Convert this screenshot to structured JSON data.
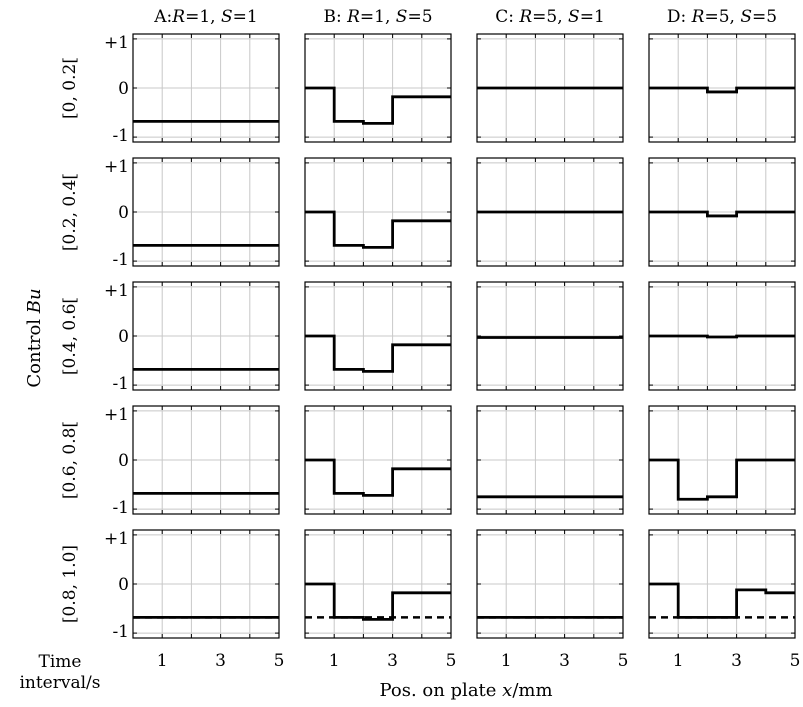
{
  "figure": {
    "ylabel_text": "Control",
    "ylabel_var": "Bu",
    "xlabel_text": "Pos. on plate",
    "xlabel_var": "x",
    "xlabel_unit": "/mm",
    "time_label_1": "Time",
    "time_label_2": "interval/s"
  },
  "columns": [
    {
      "parts": [
        {
          "t": "A:",
          "i": false
        },
        {
          "t": "R",
          "i": true
        },
        {
          "t": "=1, ",
          "i": false
        },
        {
          "t": "S",
          "i": true
        },
        {
          "t": "=1",
          "i": false
        }
      ]
    },
    {
      "parts": [
        {
          "t": "B: ",
          "i": false
        },
        {
          "t": "R",
          "i": true
        },
        {
          "t": "=1, ",
          "i": false
        },
        {
          "t": "S",
          "i": true
        },
        {
          "t": "=5",
          "i": false
        }
      ]
    },
    {
      "parts": [
        {
          "t": "C: ",
          "i": false
        },
        {
          "t": "R",
          "i": true
        },
        {
          "t": "=5, ",
          "i": false
        },
        {
          "t": "S",
          "i": true
        },
        {
          "t": "=1",
          "i": false
        }
      ]
    },
    {
      "parts": [
        {
          "t": "D: ",
          "i": false
        },
        {
          "t": "R",
          "i": true
        },
        {
          "t": "=5, ",
          "i": false
        },
        {
          "t": "S",
          "i": true
        },
        {
          "t": "=5",
          "i": false
        }
      ]
    }
  ],
  "rows": [
    "[0, 0.2[",
    "[0.2, 0.4[",
    "[0.4, 0.6[",
    "[0.6, 0.8[",
    "[0.8, 1.0]"
  ],
  "chart_data": {
    "type": "line",
    "layout": "small multiples 5 rows x 4 columns",
    "xlim": [
      0,
      5
    ],
    "ylim": [
      -1.1,
      1.1
    ],
    "x_ticks": [
      1,
      3,
      5
    ],
    "x_tick_labels": [
      "1",
      "3",
      "5"
    ],
    "y_ticks": [
      -1,
      0,
      1
    ],
    "y_tick_labels": [
      "-1",
      "0",
      "+1"
    ],
    "grid": true,
    "segment_edges": [
      0,
      1,
      2,
      3,
      4,
      5
    ],
    "dashed_reference_value": -0.68,
    "dashed_reference_rows": [
      4
    ],
    "panels": [
      [
        {
          "values": [
            -0.68,
            -0.68,
            -0.68,
            -0.68,
            -0.68
          ]
        },
        {
          "values": [
            0,
            -0.68,
            -0.72,
            -0.18,
            -0.18
          ]
        },
        {
          "values": [
            0,
            0,
            0,
            0,
            0
          ]
        },
        {
          "values": [
            0,
            0,
            -0.08,
            0,
            0
          ]
        }
      ],
      [
        {
          "values": [
            -0.68,
            -0.68,
            -0.68,
            -0.68,
            -0.68
          ]
        },
        {
          "values": [
            0,
            -0.68,
            -0.72,
            -0.18,
            -0.18
          ]
        },
        {
          "values": [
            0,
            0,
            0,
            0,
            0
          ]
        },
        {
          "values": [
            0,
            0,
            -0.08,
            0,
            0
          ]
        }
      ],
      [
        {
          "values": [
            -0.68,
            -0.68,
            -0.68,
            -0.68,
            -0.68
          ]
        },
        {
          "values": [
            0,
            -0.68,
            -0.72,
            -0.18,
            -0.18
          ]
        },
        {
          "values": [
            -0.03,
            -0.03,
            -0.03,
            -0.03,
            -0.03
          ]
        },
        {
          "values": [
            0,
            0,
            -0.02,
            0,
            0
          ]
        }
      ],
      [
        {
          "values": [
            -0.68,
            -0.68,
            -0.68,
            -0.68,
            -0.68
          ]
        },
        {
          "values": [
            0,
            -0.68,
            -0.72,
            -0.18,
            -0.18
          ]
        },
        {
          "values": [
            -0.75,
            -0.75,
            -0.75,
            -0.75,
            -0.75
          ]
        },
        {
          "values": [
            0,
            -0.8,
            -0.75,
            0,
            0
          ]
        }
      ],
      [
        {
          "values": [
            -0.68,
            -0.68,
            -0.68,
            -0.68,
            -0.68
          ]
        },
        {
          "values": [
            0,
            -0.68,
            -0.72,
            -0.18,
            -0.18
          ]
        },
        {
          "values": [
            -0.68,
            -0.68,
            -0.68,
            -0.68,
            -0.68
          ]
        },
        {
          "values": [
            0,
            -0.68,
            -0.68,
            -0.12,
            -0.18
          ]
        }
      ]
    ]
  }
}
